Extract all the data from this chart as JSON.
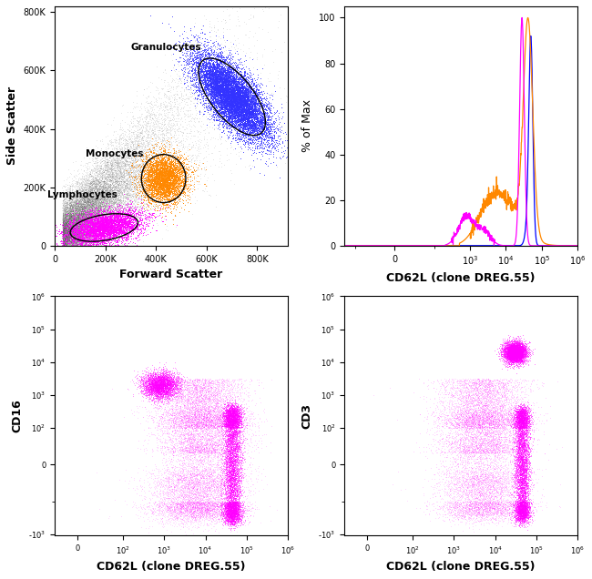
{
  "scatter_xlabel": "Forward Scatter",
  "scatter_ylabel": "Side Scatter",
  "granulocytes_label": "Granulocytes",
  "monocytes_label": "Monocytes",
  "lymphocytes_label": "Lymphocytes",
  "granulocyte_color": "#3333ff",
  "monocyte_color": "#ff8800",
  "lymphocyte_color": "#ff00ff",
  "scatter_dot_color": "#555555",
  "hist_xlabel": "CD62L (clone DREG.55)",
  "hist_ylabel": "% of Max",
  "blue_line_color": "#0000ff",
  "orange_line_color": "#ff8800",
  "magenta_line_color": "#ff00ff",
  "bottom_left_xlabel": "CD62L (clone DREG.55)",
  "bottom_left_ylabel": "CD16",
  "bottom_right_xlabel": "CD62L (clone DREG.55)",
  "bottom_right_ylabel": "CD3",
  "scatter2_color": "#ff00ff"
}
